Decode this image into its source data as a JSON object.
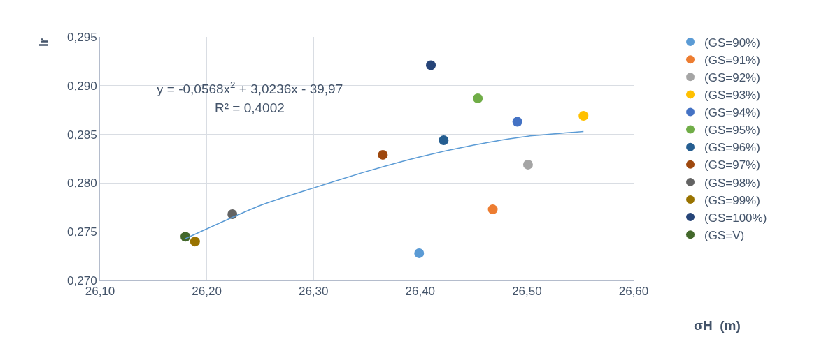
{
  "chart_data": {
    "type": "scatter",
    "xlabel": "σH  (m)",
    "ylabel": "lr",
    "annotations": [
      "y = -0,0568x$^{2}$ + 3,0236x - 39,97",
      "R² = 0,4002"
    ],
    "xlim": [
      26.1,
      26.6
    ],
    "xticks": [
      {
        "value": 26.1,
        "label": "26,10"
      },
      {
        "value": 26.2,
        "label": "26,20"
      },
      {
        "value": 26.3,
        "label": "26,30"
      },
      {
        "value": 26.4,
        "label": "26,40"
      },
      {
        "value": 26.5,
        "label": "26,50"
      },
      {
        "value": 26.6,
        "label": "26,60"
      }
    ],
    "ylim": [
      0.27,
      0.295
    ],
    "yticks": [
      {
        "value": 0.27,
        "label": "0,270"
      },
      {
        "value": 0.275,
        "label": "0,275"
      },
      {
        "value": 0.28,
        "label": "0,280"
      },
      {
        "value": 0.285,
        "label": "0,285"
      },
      {
        "value": 0.29,
        "label": "0,290"
      },
      {
        "value": 0.295,
        "label": "0,295"
      }
    ],
    "grid": true,
    "legend": "right",
    "marker": "circle",
    "series": [
      {
        "name": "(GS=90%)",
        "color": "#5b9bd5",
        "x": [
          26.399
        ],
        "values": [
          0.2728
        ]
      },
      {
        "name": "(GS=91%)",
        "color": "#ed7d31",
        "x": [
          26.468
        ],
        "values": [
          0.2773
        ]
      },
      {
        "name": "(GS=92%)",
        "color": "#a5a5a5",
        "x": [
          26.501
        ],
        "values": [
          0.2819
        ]
      },
      {
        "name": "(GS=93%)",
        "color": "#ffc000",
        "x": [
          26.553
        ],
        "values": [
          0.2869
        ]
      },
      {
        "name": "(GS=94%)",
        "color": "#4472c4",
        "x": [
          26.491
        ],
        "values": [
          0.2863
        ]
      },
      {
        "name": "(GS=95%)",
        "color": "#70ad47",
        "x": [
          26.454
        ],
        "values": [
          0.2887
        ]
      },
      {
        "name": "(GS=96%)",
        "color": "#255e91",
        "x": [
          26.422
        ],
        "values": [
          0.2844
        ]
      },
      {
        "name": "(GS=97%)",
        "color": "#9e480e",
        "x": [
          26.365
        ],
        "values": [
          0.2829
        ]
      },
      {
        "name": "(GS=98%)",
        "color": "#636363",
        "x": [
          26.224
        ],
        "values": [
          0.2768
        ]
      },
      {
        "name": "(GS=99%)",
        "color": "#997300",
        "x": [
          26.189
        ],
        "values": [
          0.274
        ]
      },
      {
        "name": "(GS=100%)",
        "color": "#264478",
        "x": [
          26.41
        ],
        "values": [
          0.2921
        ]
      },
      {
        "name": "(GS=V)",
        "color": "#43682b",
        "x": [
          26.18
        ],
        "values": [
          0.2745
        ]
      },
      {
        "type": "line",
        "color": "#5b9bd5",
        "marker": "none",
        "x": [
          26.18,
          26.25,
          26.3,
          26.35,
          26.4,
          26.45,
          26.5,
          26.553
        ],
        "values": [
          0.2743,
          0.2777,
          0.2795,
          0.2812,
          0.2827,
          0.2839,
          0.2848,
          0.2853
        ]
      }
    ]
  }
}
